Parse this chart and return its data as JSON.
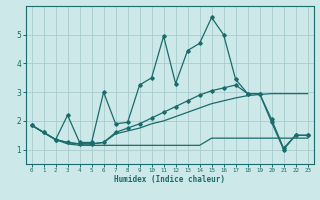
{
  "xlabel": "Humidex (Indice chaleur)",
  "ylabel": "",
  "bg_color": "#cce8e8",
  "grid_color": "#aacccc",
  "line_color": "#1a6b6b",
  "xlim": [
    -0.5,
    23.5
  ],
  "ylim": [
    0.5,
    6.0
  ],
  "xticks": [
    0,
    1,
    2,
    3,
    4,
    5,
    6,
    7,
    8,
    9,
    10,
    11,
    12,
    13,
    14,
    15,
    16,
    17,
    18,
    19,
    20,
    21,
    22,
    23
  ],
  "yticks": [
    1,
    2,
    3,
    4,
    5
  ],
  "series1_x": [
    0,
    1,
    2,
    3,
    4,
    5,
    6,
    7,
    8,
    9,
    10,
    11,
    12,
    13,
    14,
    15,
    16,
    17,
    18,
    19,
    20,
    21,
    22,
    23
  ],
  "series1_y": [
    1.85,
    1.6,
    1.35,
    1.2,
    1.15,
    1.15,
    1.15,
    1.15,
    1.15,
    1.15,
    1.15,
    1.15,
    1.15,
    1.15,
    1.15,
    1.4,
    1.4,
    1.4,
    1.4,
    1.4,
    1.4,
    1.4,
    1.4,
    1.4
  ],
  "series2_x": [
    0,
    1,
    2,
    3,
    4,
    5,
    6,
    7,
    8,
    9,
    10,
    11,
    12,
    13,
    14,
    15,
    16,
    17,
    18,
    19,
    20,
    21,
    22,
    23
  ],
  "series2_y": [
    1.85,
    1.6,
    1.35,
    1.25,
    1.2,
    1.2,
    1.25,
    1.55,
    1.65,
    1.75,
    1.9,
    2.0,
    2.15,
    2.3,
    2.45,
    2.6,
    2.7,
    2.8,
    2.88,
    2.92,
    2.95,
    2.95,
    2.95,
    2.95
  ],
  "series3_x": [
    0,
    1,
    2,
    3,
    4,
    5,
    6,
    7,
    8,
    9,
    10,
    11,
    12,
    13,
    14,
    15,
    16,
    17,
    18,
    19,
    20,
    21,
    22,
    23
  ],
  "series3_y": [
    1.85,
    1.6,
    1.35,
    1.25,
    1.2,
    1.2,
    1.25,
    1.6,
    1.75,
    1.9,
    2.1,
    2.3,
    2.5,
    2.7,
    2.9,
    3.05,
    3.15,
    3.25,
    2.95,
    2.95,
    2.05,
    1.05,
    1.5,
    1.5
  ],
  "series4_x": [
    0,
    1,
    2,
    3,
    4,
    5,
    6,
    7,
    8,
    9,
    10,
    11,
    12,
    13,
    14,
    15,
    16,
    17,
    18,
    19,
    20,
    21,
    22,
    23
  ],
  "series4_y": [
    1.85,
    1.6,
    1.35,
    2.2,
    1.25,
    1.25,
    3.0,
    1.9,
    1.95,
    3.25,
    3.5,
    4.95,
    3.3,
    4.45,
    4.7,
    5.6,
    5.0,
    3.45,
    2.95,
    2.95,
    1.95,
    1.0,
    1.5,
    1.5
  ]
}
